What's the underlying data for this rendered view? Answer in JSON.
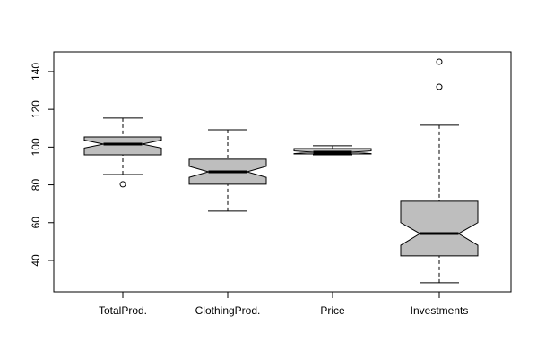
{
  "chart_data": {
    "type": "boxplot",
    "categories": [
      "TotalProd.",
      "ClothingProd.",
      "Price",
      "Investments"
    ],
    "boxes": [
      {
        "low": 85.5,
        "q1": 95.9,
        "median": 101.6,
        "q3": 105.4,
        "high": 115.4,
        "notch": [
          99.5,
          103.7
        ],
        "outliers": [
          80.3
        ]
      },
      {
        "low": 66.1,
        "q1": 80.3,
        "median": 86.9,
        "q3": 93.6,
        "high": 109.2,
        "notch": [
          84.0,
          89.8
        ],
        "outliers": []
      },
      {
        "low": 95.9,
        "q1": 96.4,
        "median": 97.3,
        "q3": 99.2,
        "high": 100.7,
        "notch": [
          96.6,
          98.0
        ],
        "outliers": []
      },
      {
        "low": 28.2,
        "q1": 42.4,
        "median": 54.2,
        "q3": 71.3,
        "high": 111.6,
        "notch": [
          48.0,
          60.0
        ],
        "outliers": [
          131.9,
          145.2
        ]
      }
    ],
    "color": "#bebebe",
    "ylim": [
      23.4,
      150.4
    ],
    "yticks": [
      40,
      60,
      80,
      100,
      120,
      140
    ]
  }
}
